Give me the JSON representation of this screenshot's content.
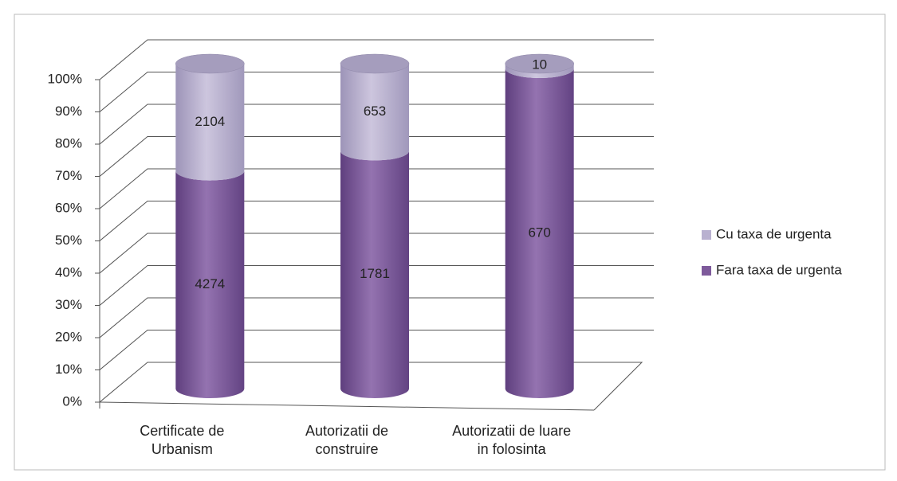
{
  "chart_data": {
    "type": "bar",
    "stacking": "percent",
    "shape": "cylinder",
    "categories": [
      "Certificate de Urbanism",
      "Autorizatii de construire",
      "Autorizatii de luare in folosinta"
    ],
    "series": [
      {
        "name": "Fara taxa de urgenta",
        "color": "#7e5a9b",
        "values": [
          4274,
          1781,
          670
        ]
      },
      {
        "name": "Cu taxa de urgenta",
        "color": "#b9b1d0",
        "values": [
          2104,
          653,
          10
        ]
      }
    ],
    "ylim": [
      0,
      100
    ],
    "yticks": [
      {
        "value": 0,
        "label": "0%"
      },
      {
        "value": 10,
        "label": "10%"
      },
      {
        "value": 20,
        "label": "20%"
      },
      {
        "value": 30,
        "label": "30%"
      },
      {
        "value": 40,
        "label": "40%"
      },
      {
        "value": 50,
        "label": "50%"
      },
      {
        "value": 60,
        "label": "60%"
      },
      {
        "value": 70,
        "label": "70%"
      },
      {
        "value": 80,
        "label": "80%"
      },
      {
        "value": 90,
        "label": "90%"
      },
      {
        "value": 100,
        "label": "100%"
      }
    ],
    "grid": true,
    "legend": "right"
  }
}
